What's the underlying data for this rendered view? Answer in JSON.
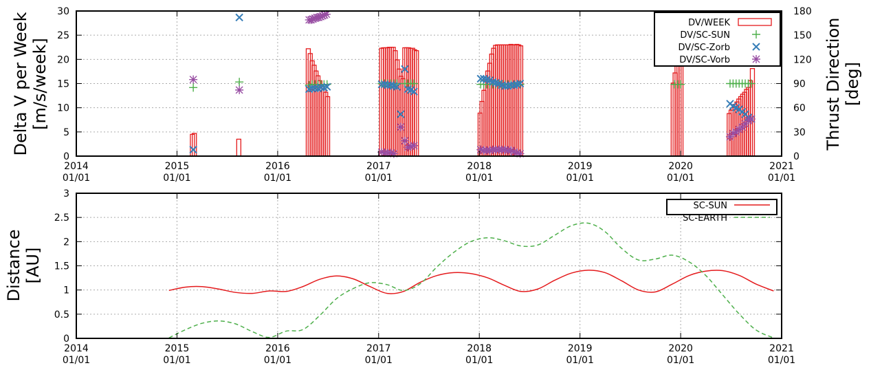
{
  "chart_data": [
    {
      "type": "bar",
      "ylabel": [
        "Delta V per Week",
        "[m/s/week]"
      ],
      "y2label": [
        "Thrust Direction",
        "[deg]"
      ],
      "xlim": [
        "2014-01-01",
        "2021-01-01"
      ],
      "ylim": [
        0,
        30
      ],
      "y2lim": [
        0,
        180
      ],
      "yticks": [
        "0",
        "5",
        "10",
        "15",
        "20",
        "25",
        "30"
      ],
      "y2ticks": [
        "0",
        "30",
        "60",
        "90",
        "120",
        "150",
        "180"
      ],
      "xticks": [
        {
          "year": "2014",
          "day": "01/01"
        },
        {
          "year": "2015",
          "day": "01/01"
        },
        {
          "year": "2016",
          "day": "01/01"
        },
        {
          "year": "2017",
          "day": "01/01"
        },
        {
          "year": "2018",
          "day": "01/01"
        },
        {
          "year": "2019",
          "day": "01/01"
        },
        {
          "year": "2020",
          "day": "01/01"
        },
        {
          "year": "2021",
          "day": "01/01"
        }
      ],
      "grid": true,
      "legend_position": "top-right",
      "colors": {
        "dv": "#e41a1c",
        "sun": "#4daf4a",
        "zorb": "#377eb8",
        "vorb": "#984ea3"
      },
      "series": [
        {
          "name": "DV/WEEK",
          "type": "bar",
          "x": [
            "2015-02-26",
            "2015-03-05",
            "2015-08-13",
            "2016-04-21",
            "2016-04-28",
            "2016-05-05",
            "2016-05-12",
            "2016-05-19",
            "2016-05-26",
            "2016-06-02",
            "2016-06-09",
            "2016-06-16",
            "2016-06-23",
            "2016-06-30",
            "2017-01-12",
            "2017-01-19",
            "2017-01-26",
            "2017-02-02",
            "2017-02-09",
            "2017-02-16",
            "2017-02-23",
            "2017-03-02",
            "2017-03-09",
            "2017-03-16",
            "2017-03-23",
            "2017-03-30",
            "2017-04-06",
            "2017-04-13",
            "2017-04-20",
            "2017-04-27",
            "2017-05-04",
            "2017-05-11",
            "2017-05-18",
            "2018-01-04",
            "2018-01-11",
            "2018-01-18",
            "2018-01-25",
            "2018-02-01",
            "2018-02-08",
            "2018-02-15",
            "2018-02-22",
            "2018-03-01",
            "2018-03-08",
            "2018-03-15",
            "2018-03-22",
            "2018-03-29",
            "2018-04-05",
            "2018-04-12",
            "2018-04-19",
            "2018-04-26",
            "2018-05-03",
            "2018-05-10",
            "2018-05-17",
            "2018-05-24",
            "2018-05-31",
            "2019-12-05",
            "2019-12-12",
            "2019-12-19",
            "2019-12-26",
            "2020-01-02",
            "2020-06-25",
            "2020-07-02",
            "2020-07-09",
            "2020-07-16",
            "2020-07-23",
            "2020-07-30",
            "2020-08-06",
            "2020-08-13",
            "2020-08-20",
            "2020-08-27",
            "2020-09-03",
            "2020-09-10",
            "2020-09-17"
          ],
          "values": [
            4.5,
            4.7,
            3.5,
            22.2,
            21.2,
            19.7,
            18.8,
            17.6,
            16.6,
            15.6,
            14.7,
            13.8,
            13.2,
            12.3,
            22.3,
            22.4,
            22.4,
            22.4,
            22.5,
            22.5,
            22.5,
            21.8,
            19.9,
            18.0,
            16.5,
            16.0,
            22.4,
            22.4,
            22.4,
            22.3,
            22.3,
            22.0,
            21.8,
            8.9,
            11.3,
            13.6,
            15.7,
            17.6,
            19.2,
            21.1,
            22.3,
            22.9,
            23.0,
            23.0,
            23.0,
            23.0,
            23.0,
            23.0,
            23.0,
            23.1,
            23.0,
            23.0,
            23.1,
            23.0,
            22.8,
            15.1,
            17.2,
            19.1,
            21.0,
            22.7,
            8.8,
            9.5,
            10.0,
            10.7,
            11.2,
            11.8,
            12.3,
            12.8,
            13.2,
            13.8,
            14.2,
            15.6,
            18.1
          ]
        },
        {
          "name": "DV/SC-SUN",
          "type": "scatter",
          "axis": "y2",
          "x": [
            "2015-03-01",
            "2015-08-15",
            "2016-04-24",
            "2016-05-05",
            "2016-05-15",
            "2016-05-26",
            "2016-06-06",
            "2016-06-17",
            "2016-06-28",
            "2017-01-12",
            "2017-01-23",
            "2017-02-03",
            "2017-02-14",
            "2017-02-25",
            "2017-03-08",
            "2017-04-06",
            "2017-04-17",
            "2017-04-28",
            "2017-05-09",
            "2018-01-06",
            "2018-01-17",
            "2018-01-28",
            "2018-02-08",
            "2018-02-19",
            "2018-03-02",
            "2018-03-13",
            "2018-03-24",
            "2018-04-04",
            "2018-04-15",
            "2018-04-26",
            "2018-05-07",
            "2018-05-18",
            "2018-05-29",
            "2019-12-10",
            "2019-12-21",
            "2020-01-01",
            "2020-06-28",
            "2020-07-09",
            "2020-07-20",
            "2020-07-31",
            "2020-08-11",
            "2020-08-22",
            "2020-09-02",
            "2020-09-13"
          ],
          "values": [
            85,
            92,
            88,
            89,
            89,
            89,
            89,
            89,
            89,
            90,
            90,
            90,
            90,
            90,
            90,
            90,
            90,
            90,
            90,
            89,
            89,
            89,
            89,
            89,
            89,
            89,
            89,
            89,
            89,
            89,
            89,
            89,
            89,
            89,
            89,
            89,
            90,
            90,
            90,
            90,
            90,
            90,
            90,
            90
          ]
        },
        {
          "name": "DV/SC-Zorb",
          "type": "scatter",
          "axis": "y2",
          "x": [
            "2015-03-01",
            "2015-08-15",
            "2016-04-24",
            "2016-05-05",
            "2016-05-15",
            "2016-05-26",
            "2016-06-06",
            "2016-06-17",
            "2016-06-28",
            "2017-01-12",
            "2017-01-23",
            "2017-02-03",
            "2017-02-14",
            "2017-02-25",
            "2017-03-08",
            "2017-03-22",
            "2017-04-06",
            "2017-04-17",
            "2017-04-28",
            "2017-05-09",
            "2018-01-06",
            "2018-01-17",
            "2018-01-28",
            "2018-02-08",
            "2018-02-19",
            "2018-03-02",
            "2018-03-13",
            "2018-03-24",
            "2018-04-04",
            "2018-04-15",
            "2018-04-26",
            "2018-05-07",
            "2018-05-18",
            "2018-05-29",
            "2019-12-10",
            "2019-12-21",
            "2020-01-01",
            "2020-06-28",
            "2020-07-09",
            "2020-07-20",
            "2020-07-31",
            "2020-08-11",
            "2020-08-22",
            "2020-09-02",
            "2020-09-13"
          ],
          "values": [
            8,
            172,
            83,
            84,
            84,
            84,
            85,
            85,
            86,
            89,
            89,
            88,
            88,
            87,
            86,
            52,
            108,
            83,
            82,
            80,
            96,
            96,
            95,
            94,
            92,
            91,
            90,
            88,
            87,
            87,
            88,
            88,
            89,
            90,
            117,
            135,
            141,
            65,
            62,
            60,
            58,
            55,
            52,
            48,
            46
          ]
        },
        {
          "name": "DV/SC-Vorb",
          "type": "scatter",
          "axis": "y2",
          "x": [
            "2015-03-01",
            "2015-08-15",
            "2016-04-24",
            "2016-05-01",
            "2016-05-08",
            "2016-05-15",
            "2016-05-22",
            "2016-05-29",
            "2016-06-05",
            "2016-06-12",
            "2016-06-19",
            "2016-06-26",
            "2017-01-12",
            "2017-01-23",
            "2017-02-03",
            "2017-02-14",
            "2017-02-25",
            "2017-03-22",
            "2017-04-06",
            "2017-04-17",
            "2017-04-28",
            "2017-05-09",
            "2018-01-06",
            "2018-01-17",
            "2018-01-28",
            "2018-02-08",
            "2018-02-19",
            "2018-03-02",
            "2018-03-13",
            "2018-03-24",
            "2018-04-04",
            "2018-04-15",
            "2018-04-26",
            "2018-05-07",
            "2018-05-18",
            "2018-05-29",
            "2019-12-10",
            "2019-12-21",
            "2020-01-01",
            "2020-06-28",
            "2020-07-09",
            "2020-07-20",
            "2020-07-31",
            "2020-08-11",
            "2020-08-22",
            "2020-09-02",
            "2020-09-13"
          ],
          "values": [
            95,
            82,
            169,
            169,
            170,
            171,
            172,
            172,
            173,
            174,
            175,
            176,
            5,
            4,
            4,
            4,
            3,
            36,
            19,
            11,
            12,
            13,
            8,
            7,
            7,
            7,
            8,
            8,
            8,
            8,
            8,
            7,
            7,
            5,
            4,
            3,
            150,
            138,
            132,
            24,
            28,
            30,
            33,
            36,
            40,
            44,
            46
          ]
        }
      ]
    },
    {
      "type": "line",
      "ylabel": [
        "Distance",
        "[AU]"
      ],
      "xlim": [
        "2014-01-01",
        "2021-01-01"
      ],
      "ylim": [
        0,
        3
      ],
      "yticks": [
        "0",
        "0.5",
        "1",
        "1.5",
        "2",
        "2.5",
        "3"
      ],
      "xticks": [
        {
          "year": "2014",
          "day": "01/01"
        },
        {
          "year": "2015",
          "day": "01/01"
        },
        {
          "year": "2016",
          "day": "01/01"
        },
        {
          "year": "2017",
          "day": "01/01"
        },
        {
          "year": "2018",
          "day": "01/01"
        },
        {
          "year": "2019",
          "day": "01/01"
        },
        {
          "year": "2020",
          "day": "01/01"
        },
        {
          "year": "2021",
          "day": "01/01"
        }
      ],
      "grid": true,
      "legend_position": "top-right",
      "colors": {
        "sun": "#e41a1c",
        "earth": "#4daf4a"
      },
      "series": [
        {
          "name": "SC-SUN",
          "style": "solid",
          "x": [
            "2014-12-03",
            "2015-02-01",
            "2015-04-01",
            "2015-06-01",
            "2015-08-01",
            "2015-10-01",
            "2015-12-01",
            "2016-02-01",
            "2016-04-01",
            "2016-06-01",
            "2016-08-01",
            "2016-10-01",
            "2016-12-01",
            "2017-02-01",
            "2017-04-01",
            "2017-06-01",
            "2017-08-01",
            "2017-10-01",
            "2017-12-01",
            "2018-02-01",
            "2018-04-01",
            "2018-06-01",
            "2018-08-01",
            "2018-10-01",
            "2018-12-01",
            "2019-02-01",
            "2019-04-01",
            "2019-06-01",
            "2019-08-01",
            "2019-10-01",
            "2019-12-01",
            "2020-02-01",
            "2020-04-01",
            "2020-06-01",
            "2020-08-01",
            "2020-10-01",
            "2020-12-03"
          ],
          "values": [
            0.99,
            1.06,
            1.07,
            1.02,
            0.95,
            0.93,
            0.98,
            0.97,
            1.07,
            1.22,
            1.29,
            1.23,
            1.07,
            0.93,
            0.97,
            1.16,
            1.3,
            1.36,
            1.34,
            1.25,
            1.1,
            0.97,
            1.02,
            1.2,
            1.35,
            1.41,
            1.36,
            1.19,
            1.0,
            0.96,
            1.12,
            1.3,
            1.39,
            1.4,
            1.3,
            1.12,
            0.98
          ]
        },
        {
          "name": "SC-EARTH",
          "style": "dashed",
          "x": [
            "2014-12-03",
            "2015-02-01",
            "2015-04-01",
            "2015-06-01",
            "2015-08-01",
            "2015-10-01",
            "2015-12-01",
            "2016-02-01",
            "2016-04-01",
            "2016-06-01",
            "2016-08-01",
            "2016-10-01",
            "2016-12-01",
            "2017-02-01",
            "2017-04-01",
            "2017-06-01",
            "2017-08-01",
            "2017-10-01",
            "2017-12-01",
            "2018-02-01",
            "2018-04-01",
            "2018-06-01",
            "2018-08-01",
            "2018-10-01",
            "2018-12-01",
            "2019-02-01",
            "2019-04-01",
            "2019-06-01",
            "2019-08-01",
            "2019-10-01",
            "2019-12-01",
            "2020-02-01",
            "2020-04-01",
            "2020-06-01",
            "2020-08-01",
            "2020-10-01",
            "2020-12-03"
          ],
          "values": [
            0.01,
            0.18,
            0.31,
            0.36,
            0.3,
            0.14,
            0.02,
            0.15,
            0.18,
            0.47,
            0.82,
            1.03,
            1.15,
            1.11,
            0.99,
            1.13,
            1.48,
            1.78,
            2.0,
            2.08,
            2.02,
            1.91,
            1.93,
            2.13,
            2.33,
            2.38,
            2.21,
            1.86,
            1.62,
            1.64,
            1.72,
            1.58,
            1.3,
            0.9,
            0.5,
            0.17,
            0.01
          ]
        }
      ]
    }
  ]
}
